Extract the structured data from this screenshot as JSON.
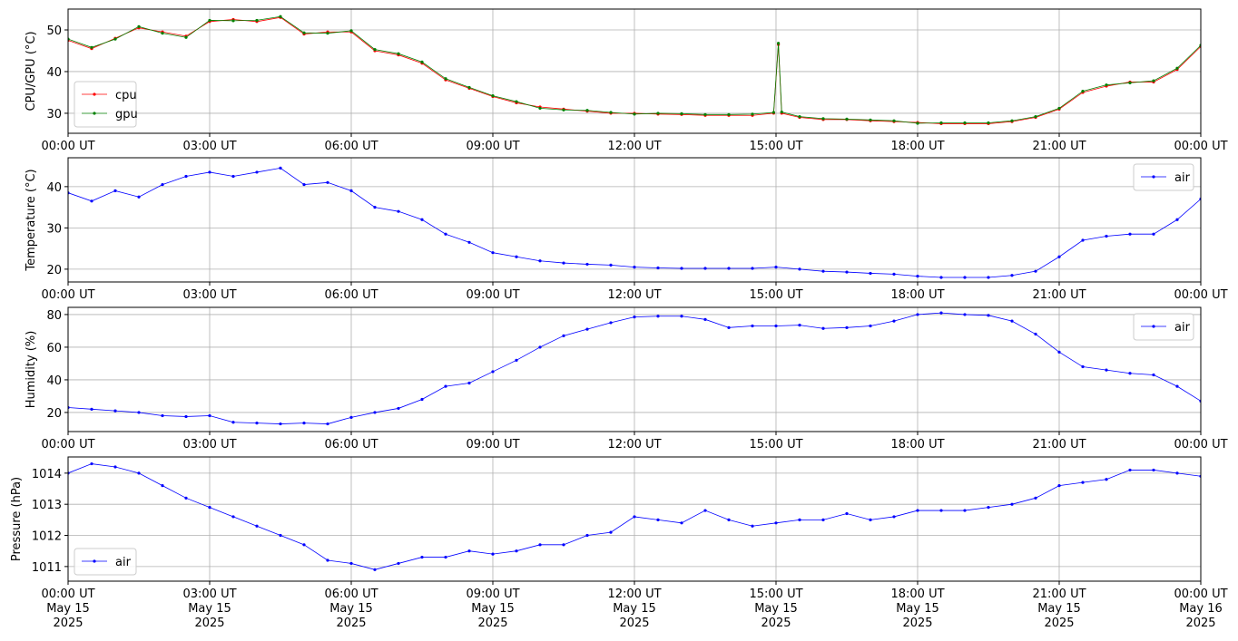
{
  "chart_data": [
    {
      "type": "line",
      "ylabel": "CPU/GPU (°C)",
      "legend": "lower left",
      "grid": true,
      "xlim": [
        0,
        24
      ],
      "ylim": [
        25.2,
        55
      ],
      "yticks": [
        30,
        40,
        50
      ],
      "xticks": [
        {
          "value": 0,
          "label": "00:00 UT"
        },
        {
          "value": 3,
          "label": "03:00 UT"
        },
        {
          "value": 6,
          "label": "06:00 UT"
        },
        {
          "value": 9,
          "label": "09:00 UT"
        },
        {
          "value": 12,
          "label": "12:00 UT"
        },
        {
          "value": 15,
          "label": "15:00 UT"
        },
        {
          "value": 18,
          "label": "18:00 UT"
        },
        {
          "value": 21,
          "label": "21:00 UT"
        },
        {
          "value": 24,
          "label": "00:00 UT"
        }
      ],
      "x": [
        0,
        0.5,
        1,
        1.5,
        2,
        2.5,
        3,
        3.5,
        4,
        4.5,
        5,
        5.5,
        6,
        6.5,
        7,
        7.5,
        8,
        8.5,
        9,
        9.5,
        10,
        10.5,
        11,
        11.5,
        12,
        12.5,
        13,
        13.5,
        14,
        14.5,
        14.95,
        15.05,
        15.12,
        15.5,
        16,
        16.5,
        17,
        17.5,
        18,
        18.5,
        19,
        19.5,
        20,
        20.5,
        21,
        21.5,
        22,
        22.5,
        23,
        23.5,
        24
      ],
      "series": [
        {
          "name": "cpu",
          "color": "#ff0000",
          "values": [
            47.5,
            45.5,
            48,
            50.5,
            49.5,
            48.5,
            52,
            52.5,
            52,
            53,
            49,
            49.5,
            49.5,
            45,
            44,
            42,
            38,
            36,
            34,
            32.5,
            31.5,
            31,
            30.5,
            30,
            30,
            29.8,
            29.7,
            29.5,
            29.5,
            29.5,
            30,
            46.5,
            30,
            29,
            28.5,
            28.5,
            28.2,
            28,
            27.8,
            27.5,
            27.5,
            27.5,
            28,
            29,
            31,
            35,
            36.5,
            37.5,
            37.5,
            40.5,
            46
          ]
        },
        {
          "name": "gpu",
          "color": "#008000",
          "values": [
            47.8,
            45.8,
            47.8,
            50.8,
            49.2,
            48.2,
            52.3,
            52.2,
            52.3,
            53.2,
            49.3,
            49.2,
            49.8,
            45.3,
            44.3,
            42.3,
            38.3,
            36.2,
            34.2,
            32.8,
            31.2,
            30.8,
            30.7,
            30.2,
            29.8,
            30,
            29.9,
            29.7,
            29.7,
            29.8,
            30.2,
            46.8,
            30.3,
            29.2,
            28.7,
            28.6,
            28.4,
            28.2,
            27.6,
            27.7,
            27.7,
            27.7,
            28.2,
            29.2,
            31.2,
            35.3,
            36.8,
            37.3,
            37.8,
            40.8,
            46.3
          ]
        }
      ]
    },
    {
      "type": "line",
      "ylabel": "Temperature (°C)",
      "legend": "upper right",
      "grid": true,
      "xlim": [
        0,
        24
      ],
      "ylim": [
        16.9,
        47
      ],
      "yticks": [
        20,
        30,
        40
      ],
      "xticks": [
        {
          "value": 0,
          "label": "00:00 UT"
        },
        {
          "value": 3,
          "label": "03:00 UT"
        },
        {
          "value": 6,
          "label": "06:00 UT"
        },
        {
          "value": 9,
          "label": "09:00 UT"
        },
        {
          "value": 12,
          "label": "12:00 UT"
        },
        {
          "value": 15,
          "label": "15:00 UT"
        },
        {
          "value": 18,
          "label": "18:00 UT"
        },
        {
          "value": 21,
          "label": "21:00 UT"
        },
        {
          "value": 24,
          "label": "00:00 UT"
        }
      ],
      "x": [
        0,
        0.5,
        1,
        1.5,
        2,
        2.5,
        3,
        3.5,
        4,
        4.5,
        5,
        5.5,
        6,
        6.5,
        7,
        7.5,
        8,
        8.5,
        9,
        9.5,
        10,
        10.5,
        11,
        11.5,
        12,
        12.5,
        13,
        13.5,
        14,
        14.5,
        15,
        15.5,
        16,
        16.5,
        17,
        17.5,
        18,
        18.5,
        19,
        19.5,
        20,
        20.5,
        21,
        21.5,
        22,
        22.5,
        23,
        23.5,
        24
      ],
      "series": [
        {
          "name": "air",
          "color": "#0000ff",
          "values": [
            38.5,
            36.5,
            39,
            37.5,
            40.5,
            42.5,
            43.5,
            42.5,
            43.5,
            44.5,
            40.5,
            41,
            39,
            35,
            34,
            32,
            28.5,
            26.5,
            24,
            23,
            22,
            21.5,
            21.2,
            21,
            20.5,
            20.3,
            20.2,
            20.2,
            20.2,
            20.2,
            20.5,
            20,
            19.5,
            19.3,
            19,
            18.8,
            18.3,
            18,
            18,
            18,
            18.5,
            19.5,
            23,
            27,
            28,
            28.5,
            28.5,
            32,
            37
          ]
        }
      ]
    },
    {
      "type": "line",
      "ylabel": "Humidity (%)",
      "legend": "upper right",
      "grid": true,
      "xlim": [
        0,
        24
      ],
      "ylim": [
        8.3,
        84.4
      ],
      "yticks": [
        20,
        40,
        60,
        80
      ],
      "xticks": [
        {
          "value": 0,
          "label": "00:00 UT"
        },
        {
          "value": 3,
          "label": "03:00 UT"
        },
        {
          "value": 6,
          "label": "06:00 UT"
        },
        {
          "value": 9,
          "label": "09:00 UT"
        },
        {
          "value": 12,
          "label": "12:00 UT"
        },
        {
          "value": 15,
          "label": "15:00 UT"
        },
        {
          "value": 18,
          "label": "18:00 UT"
        },
        {
          "value": 21,
          "label": "21:00 UT"
        },
        {
          "value": 24,
          "label": "00:00 UT"
        }
      ],
      "x": [
        0,
        0.5,
        1,
        1.5,
        2,
        2.5,
        3,
        3.5,
        4,
        4.5,
        5,
        5.5,
        6,
        6.5,
        7,
        7.5,
        8,
        8.5,
        9,
        9.5,
        10,
        10.5,
        11,
        11.5,
        12,
        12.5,
        13,
        13.5,
        14,
        14.5,
        15,
        15.5,
        16,
        16.5,
        17,
        17.5,
        18,
        18.5,
        19,
        19.5,
        20,
        20.5,
        21,
        21.5,
        22,
        22.5,
        23,
        23.5,
        24
      ],
      "series": [
        {
          "name": "air",
          "color": "#0000ff",
          "values": [
            23,
            22,
            21,
            20,
            18,
            17.5,
            18,
            14,
            13.5,
            13,
            13.5,
            13,
            17,
            20,
            22.5,
            28,
            36,
            38,
            45,
            52,
            60,
            67,
            71,
            75,
            78.5,
            79,
            79,
            77,
            72,
            73,
            73,
            73.5,
            71.5,
            72,
            73,
            76,
            80,
            81,
            80,
            79.5,
            76,
            68,
            57,
            48,
            46,
            44,
            43,
            36,
            27
          ]
        }
      ]
    },
    {
      "type": "line",
      "ylabel": "Pressure (hPa)",
      "legend": "lower left",
      "grid": true,
      "xlim": [
        0,
        24
      ],
      "ylim": [
        1010.53,
        1014.52
      ],
      "yticks": [
        1011,
        1012,
        1013,
        1014
      ],
      "xticks": [
        {
          "value": 0,
          "label": "00:00 UT\nMay 15\n2025"
        },
        {
          "value": 3,
          "label": "03:00 UT\nMay 15\n2025"
        },
        {
          "value": 6,
          "label": "06:00 UT\nMay 15\n2025"
        },
        {
          "value": 9,
          "label": "09:00 UT\nMay 15\n2025"
        },
        {
          "value": 12,
          "label": "12:00 UT\nMay 15\n2025"
        },
        {
          "value": 15,
          "label": "15:00 UT\nMay 15\n2025"
        },
        {
          "value": 18,
          "label": "18:00 UT\nMay 15\n2025"
        },
        {
          "value": 21,
          "label": "21:00 UT\nMay 15\n2025"
        },
        {
          "value": 24,
          "label": "00:00 UT\nMay 16\n2025"
        }
      ],
      "x": [
        0,
        0.5,
        1,
        1.5,
        2,
        2.5,
        3,
        3.5,
        4,
        4.5,
        5,
        5.5,
        6,
        6.5,
        7,
        7.5,
        8,
        8.5,
        9,
        9.5,
        10,
        10.5,
        11,
        11.5,
        12,
        12.5,
        13,
        13.5,
        14,
        14.5,
        15,
        15.5,
        16,
        16.5,
        17,
        17.5,
        18,
        18.5,
        19,
        19.5,
        20,
        20.5,
        21,
        21.5,
        22,
        22.5,
        23,
        23.5,
        24
      ],
      "series": [
        {
          "name": "air",
          "color": "#0000ff",
          "values": [
            1014.0,
            1014.3,
            1014.2,
            1014.0,
            1013.6,
            1013.2,
            1012.9,
            1012.6,
            1012.3,
            1012.0,
            1011.7,
            1011.2,
            1011.1,
            1010.9,
            1011.1,
            1011.3,
            1011.3,
            1011.5,
            1011.4,
            1011.5,
            1011.7,
            1011.7,
            1012.0,
            1012.1,
            1012.6,
            1012.5,
            1012.4,
            1012.8,
            1012.5,
            1012.3,
            1012.4,
            1012.5,
            1012.5,
            1012.7,
            1012.5,
            1012.6,
            1012.8,
            1012.8,
            1012.8,
            1012.9,
            1013.0,
            1013.2,
            1013.6,
            1013.7,
            1013.8,
            1014.1,
            1014.1,
            1014.0,
            1013.9
          ]
        }
      ]
    }
  ]
}
